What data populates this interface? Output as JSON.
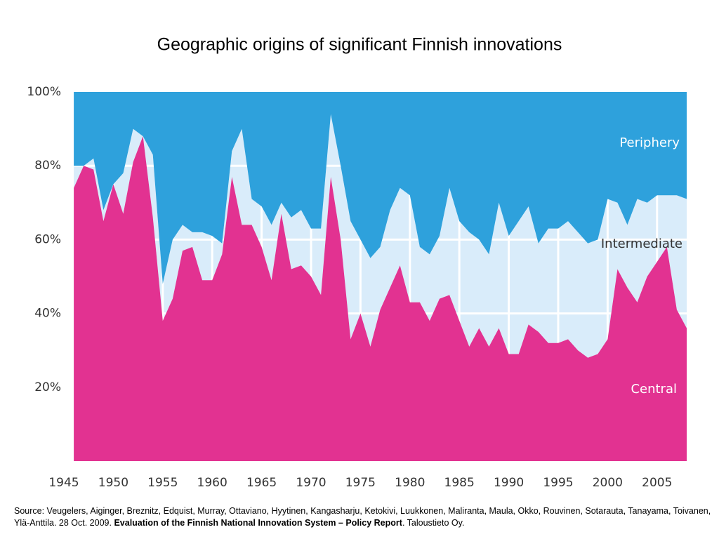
{
  "chart_data": {
    "type": "stacked_area",
    "title": "Geographic origins of significant Finnish innovations",
    "x": [
      1946,
      1947,
      1948,
      1949,
      1950,
      1951,
      1952,
      1953,
      1954,
      1955,
      1956,
      1957,
      1958,
      1959,
      1960,
      1961,
      1962,
      1963,
      1964,
      1965,
      1966,
      1967,
      1968,
      1969,
      1970,
      1971,
      1972,
      1973,
      1974,
      1975,
      1976,
      1977,
      1978,
      1979,
      1980,
      1981,
      1982,
      1983,
      1984,
      1985,
      1986,
      1987,
      1988,
      1989,
      1990,
      1991,
      1992,
      1993,
      1994,
      1995,
      1996,
      1997,
      1998,
      1999,
      2000,
      2001,
      2002,
      2003,
      2004,
      2005,
      2006,
      2007,
      2008
    ],
    "series": [
      {
        "name": "Central",
        "color": "#e23291",
        "values": [
          74,
          80,
          79,
          65,
          75,
          67,
          81,
          88,
          66,
          38,
          44,
          57,
          58,
          49,
          49,
          56,
          77,
          64,
          64,
          58,
          49,
          67,
          52,
          53,
          50,
          45,
          77,
          60,
          33,
          40,
          31,
          41,
          47,
          53,
          43,
          43,
          38,
          44,
          45,
          38,
          31,
          36,
          31,
          36,
          29,
          29,
          37,
          35,
          32,
          32,
          33,
          30,
          28,
          29,
          33,
          52,
          47,
          43,
          50,
          54,
          58,
          41,
          36
        ]
      },
      {
        "name": "Intermediate",
        "color": "#d9ecfa",
        "values": [
          6,
          0,
          3,
          3,
          0,
          11,
          9,
          0,
          17,
          10,
          16,
          7,
          4,
          13,
          12,
          3,
          7,
          26,
          7,
          11,
          15,
          3,
          14,
          15,
          13,
          18,
          17,
          20,
          32,
          20,
          24,
          17,
          21,
          21,
          29,
          15,
          18,
          17,
          29,
          27,
          31,
          24,
          25,
          34,
          32,
          36,
          32,
          24,
          31,
          31,
          32,
          32,
          31,
          31,
          38,
          18,
          17,
          28,
          20,
          18,
          14,
          31,
          35
        ]
      },
      {
        "name": "Periphery",
        "color": "#2ea1dc",
        "values": [
          20,
          20,
          18,
          32,
          25,
          22,
          10,
          12,
          17,
          52,
          40,
          36,
          38,
          38,
          39,
          41,
          16,
          10,
          29,
          31,
          36,
          30,
          34,
          32,
          37,
          37,
          6,
          20,
          35,
          40,
          45,
          42,
          32,
          26,
          28,
          42,
          44,
          39,
          26,
          35,
          38,
          40,
          44,
          30,
          39,
          35,
          31,
          41,
          37,
          37,
          35,
          38,
          41,
          40,
          29,
          30,
          36,
          29,
          30,
          28,
          28,
          28,
          29
        ]
      }
    ],
    "xlim": [
      1945,
      2008
    ],
    "xticks": [
      1945,
      1950,
      1955,
      1960,
      1965,
      1970,
      1975,
      1980,
      1985,
      1990,
      1995,
      2000,
      2005
    ],
    "ylim": [
      0,
      100
    ],
    "yticks": [
      {
        "value": 20,
        "label": "20%"
      },
      {
        "value": 40,
        "label": "40%"
      },
      {
        "value": 60,
        "label": "60%"
      },
      {
        "value": 80,
        "label": "80%"
      },
      {
        "value": 100,
        "label": "100%"
      }
    ],
    "grid": true,
    "source": {
      "text": "Source: Veugelers, Aiginger, Breznitz, Edquist, Murray, Ottaviano, Hyytinen, Kangasharju, Ketokivi, Luukkonen, Maliranta, Maula, Okko, Rouvinen, Sotarauta, Tanayama, Toivanen, Ylä-Anttila. 28 Oct. 2009. ",
      "report": "Evaluation of the Finnish National Innovation System – Policy Report",
      "publisher": ". Taloustieto Oy."
    }
  }
}
